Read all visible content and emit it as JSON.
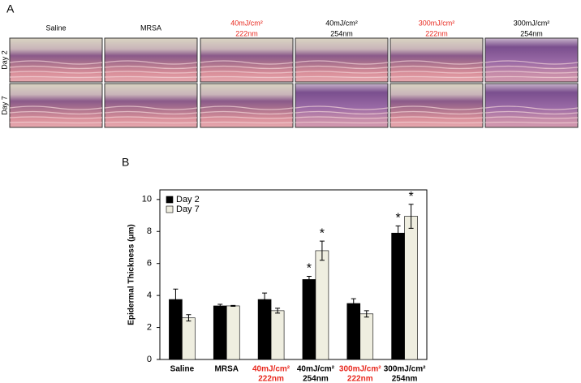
{
  "panel_a": {
    "label": "A",
    "rows": [
      "Day 2",
      "Day 7"
    ],
    "columns": [
      {
        "lines": [
          "Saline"
        ],
        "color": "#000000"
      },
      {
        "lines": [
          "MRSA"
        ],
        "color": "#000000"
      },
      {
        "lines": [
          "40mJ/cm²",
          "222nm"
        ],
        "color": "#e8281e"
      },
      {
        "lines": [
          "40mJ/cm²",
          "254nm"
        ],
        "color": "#000000"
      },
      {
        "lines": [
          "300mJ/cm²",
          "222nm"
        ],
        "color": "#e8281e"
      },
      {
        "lines": [
          "300mJ/cm²",
          "254nm"
        ],
        "color": "#000000"
      }
    ]
  },
  "panel_b": {
    "label": "B"
  },
  "chart_data": {
    "type": "bar",
    "ylabel": "Epidermal Thickness (μm)",
    "categories": [
      [
        "Saline"
      ],
      [
        "MRSA"
      ],
      [
        "40mJ/cm²",
        "222nm"
      ],
      [
        "40mJ/cm²",
        "254nm"
      ],
      [
        "300mJ/cm²",
        "222nm"
      ],
      [
        "300mJ/cm²",
        "254nm"
      ]
    ],
    "category_colors": [
      "#000000",
      "#000000",
      "#e8281e",
      "#000000",
      "#e8281e",
      "#000000"
    ],
    "series": [
      {
        "name": "Day 2",
        "color": "#000000",
        "values": [
          3.75,
          3.35,
          3.75,
          5.0,
          3.5,
          7.9
        ],
        "errors": [
          0.65,
          0.1,
          0.4,
          0.2,
          0.3,
          0.45
        ],
        "annotations": [
          null,
          null,
          null,
          "*",
          null,
          "*"
        ]
      },
      {
        "name": "Day 7",
        "color": "#efeee0",
        "values": [
          2.6,
          3.35,
          3.05,
          6.8,
          2.85,
          8.95
        ],
        "errors": [
          0.2,
          0.03,
          0.15,
          0.6,
          0.2,
          0.75
        ],
        "annotations": [
          null,
          null,
          null,
          "*",
          null,
          "*"
        ]
      }
    ],
    "ylim": [
      0,
      10.6
    ],
    "yticks": [
      0,
      2,
      4,
      6,
      8,
      10
    ],
    "legend": "upper left"
  }
}
